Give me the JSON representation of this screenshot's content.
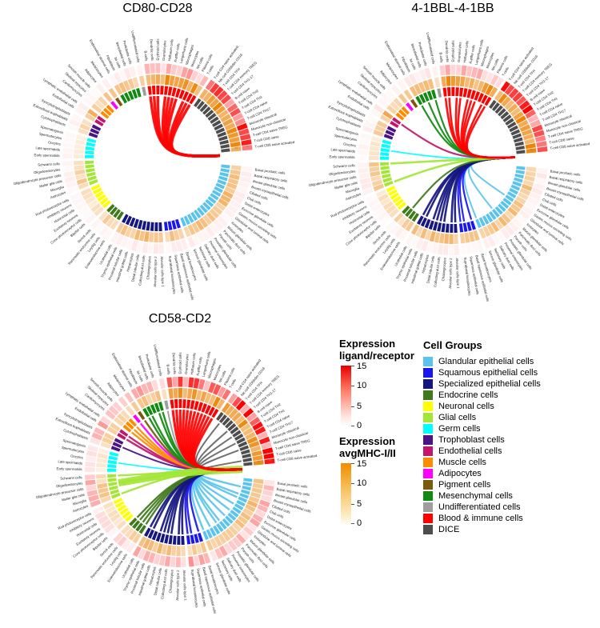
{
  "legend_ligand": {
    "title_line1": "Expression",
    "title_line2": "ligand/receptor",
    "ticks": [
      "15",
      "10",
      "5",
      "0"
    ]
  },
  "legend_mhc": {
    "title_line1": "Expression",
    "title_line2": "avgMHC-I/II",
    "ticks": [
      "15",
      "10",
      "5",
      "0"
    ]
  },
  "cell_groups": {
    "title": "Cell Groups"
  },
  "chart_data": {
    "type": "circos-chord",
    "expression_scale": {
      "min": 0,
      "max": 15,
      "ticks": [
        15,
        10,
        5,
        0
      ]
    },
    "gap_scale_label": "15",
    "groups": [
      {
        "name": "Glandular epithelial cells",
        "color": "#5BC4EC",
        "cells": [
          "Basal prostatic cells",
          "Basal respiratory cells",
          "Breast glandular cells",
          "Breast myoepithelial cells",
          "Ciliated cells",
          "Club cells",
          "Distal enterocytes",
          "Exocrine glandular cells",
          "Gastric mucus-secreting cells",
          "Glandular and luminal cells",
          "Ionocytes",
          "Mucus glandular cells",
          "Pancreatic duct cells",
          "Paneth cells",
          "Prostatic glandular cells",
          "Proximal enterocytes",
          "Salivary duct cells",
          "Secretory cells",
          "Serous glandular cells"
        ]
      },
      {
        "name": "Squamous epithelial cells",
        "color": "#1A16F0",
        "cells": [
          "Basal keratinocytes",
          "Basal squamous epithelial cells",
          "Squamous epithelial cells",
          "Suprabasal keratinocytes"
        ]
      },
      {
        "name": "Specialized epithelial cells",
        "color": "#16167F",
        "cells": [
          "Alveolar cells type 1",
          "Alveolar cells type 2",
          "Cholangiocytes",
          "Collecting duct cells",
          "Distal tubular cells",
          "Hepatocytes",
          "Intestinal goblet cells",
          "Proximal tubular cells",
          "Thymic epithelial cells",
          "Urothelial cells"
        ]
      },
      {
        "name": "Endocrine cells",
        "color": "#3F7A1B",
        "cells": [
          "Enteroendocrine cells",
          "Leydig cells",
          "Pancreatic endocrine cells",
          "Sertoli cells"
        ]
      },
      {
        "name": "Neuronal cells",
        "color": "#FFFF00",
        "cells": [
          "Bipolar cells",
          "Cone photoreceptor cells",
          "Excitatory neurons",
          "Horizontal cells",
          "Inhibitory neurons",
          "Rod photoreceptor cells"
        ]
      },
      {
        "name": "Glial cells",
        "color": "#A3E635",
        "cells": [
          "Astrocytes",
          "Microglia",
          "Muller glia cells",
          "Oligodendrocyte precursor cells",
          "Oligodendrocytes",
          "Schwann cells"
        ]
      },
      {
        "name": "Germ cells",
        "color": "#00FFFF",
        "cells": [
          "Early spermatids",
          "Late spermatids",
          "Oocytes",
          "Spermatocytes",
          "Spermatogonia"
        ]
      },
      {
        "name": "Trophoblast cells",
        "color": "#4A1486",
        "cells": [
          "Cytotrophoblasts",
          "Extravillous trophoblasts",
          "Syncytiotrophoblasts"
        ]
      },
      {
        "name": "Endothelial cells",
        "color": "#C2156B",
        "cells": [
          "Endothelial cells",
          "Lymphatic endothelial cells"
        ]
      },
      {
        "name": "Muscle cells",
        "color": "#FF8C00",
        "cells": [
          "Cardiomyocytes",
          "Skeletal myocytes",
          "Smooth muscle cells"
        ]
      },
      {
        "name": "Adipocytes",
        "color": "#FF00FF",
        "cells": [
          "Adipocytes"
        ]
      },
      {
        "name": "Pigment cells",
        "color": "#7A5A0B",
        "cells": [
          "Melanocytes"
        ]
      },
      {
        "name": "Mesenchymal cells",
        "color": "#118A11",
        "cells": [
          "Endometrial stromal cells",
          "Fibroblasts",
          "Ito cells",
          "Mesothelial cells",
          "Peritubular cells"
        ]
      },
      {
        "name": "Undifferentiated cells",
        "color": "#9E9E9E",
        "cells": [
          "Undifferentiated cells"
        ]
      },
      {
        "name": "Blood & immune cells",
        "color": "#FF0000",
        "cells": [
          "B-cells",
          "Dendritic cells",
          "Erythroid cells",
          "Granulocytes",
          "Hofbauer cells",
          "Kupffer cells",
          "Langerhans cells",
          "Macrophages",
          "Monocytes",
          "NK-cells",
          "Plasma cells",
          "T-cells"
        ]
      },
      {
        "name": "DICE",
        "color": "#4D4D4D",
        "cells": [
          "T-cell CD4 naive activated",
          "NK-cell CD56dim CD16",
          "T-cell CD4 TFH",
          "T-cell CD4 memory TREG",
          "T-cell CD4 TH1-17",
          "B-cell naive",
          "T-cell CD4 TH2",
          "T-cell CD4 TH1",
          "T-cell CD4 naive",
          "T-cell CD4 TH17",
          "Monocyte classical",
          "Monocyte non-classical",
          "T-cell CD4 naive TREG",
          "T-cell CD8 naive",
          "T-cell CD8 naive activated"
        ]
      }
    ],
    "mhc_heat": {
      "Glandular epithelial cells": 7,
      "Squamous epithelial cells": 6,
      "Specialized epithelial cells": 7,
      "Endocrine cells": 5,
      "Neuronal cells": 3.5,
      "Glial cells": 5.5,
      "Germ cells": 2.5,
      "Trophoblast cells": 5,
      "Endothelial cells": 8,
      "Muscle cells": 4.5,
      "Adipocytes": 6,
      "Pigment cells": 6,
      "Mesenchymal cells": 6.5,
      "Undifferentiated cells": 5.5,
      "Blood & immune cells": 11,
      "DICE": 12
    },
    "plots": [
      {
        "title": "CD80-CD28",
        "ligand_heat": {
          "Glandular epithelial cells": 0.8,
          "Squamous epithelial cells": 0.8,
          "Specialized epithelial cells": 0.9,
          "Endocrine cells": 0.6,
          "Neuronal cells": 0.4,
          "Glial cells": 0.7,
          "Germ cells": 0.4,
          "Trophoblast cells": 0.6,
          "Endothelial cells": 0.9,
          "Muscle cells": 0.5,
          "Adipocytes": 0.6,
          "Pigment cells": 0.6,
          "Mesenchymal cells": 0.9,
          "Undifferentiated cells": 0.8,
          "Blood & immune cells": 4,
          "DICE": 9.5
        },
        "chords": [
          {
            "group": "Blood & immune cells",
            "n": 10,
            "width": 3.5
          }
        ]
      },
      {
        "title": "4-1BBL-4-1BB",
        "ligand_heat": {
          "Glandular epithelial cells": 0.9,
          "Squamous epithelial cells": 0.9,
          "Specialized epithelial cells": 1,
          "Endocrine cells": 0.6,
          "Neuronal cells": 0.4,
          "Glial cells": 1,
          "Germ cells": 0.5,
          "Trophoblast cells": 0.7,
          "Endothelial cells": 1,
          "Muscle cells": 0.5,
          "Adipocytes": 0.7,
          "Pigment cells": 0.7,
          "Mesenchymal cells": 1,
          "Undifferentiated cells": 0.9,
          "Blood & immune cells": 3.5,
          "DICE": 10.5
        },
        "chords": [
          {
            "group": "Glandular epithelial cells",
            "n": 3,
            "width": 2,
            "from": 0.45
          },
          {
            "group": "Squamous epithelial cells",
            "n": 3,
            "width": 2.2
          },
          {
            "group": "Specialized epithelial cells",
            "n": 8,
            "width": 2.6
          },
          {
            "group": "Endocrine cells",
            "n": 1,
            "width": 2.2
          },
          {
            "group": "Germ cells",
            "n": 1,
            "width": 1.8
          },
          {
            "group": "Endothelial cells",
            "n": 1,
            "width": 2.2
          },
          {
            "group": "Mesenchymal cells",
            "n": 3,
            "width": 2.2
          },
          {
            "group": "Glial cells",
            "n": 2,
            "width": 2.6
          },
          {
            "group": "Blood & immune cells",
            "n": 9,
            "width": 2.6
          }
        ]
      },
      {
        "title": "CD58-CD2",
        "ligand_heat": {
          "Glandular epithelial cells": 3.5,
          "Squamous epithelial cells": 4.5,
          "Specialized epithelial cells": 3.5,
          "Endocrine cells": 2.5,
          "Neuronal cells": 1.5,
          "Glial cells": 3.5,
          "Germ cells": 1.5,
          "Trophoblast cells": 3,
          "Endothelial cells": 4.5,
          "Muscle cells": 2.5,
          "Adipocytes": 3,
          "Pigment cells": 3,
          "Mesenchymal cells": 4.5,
          "Undifferentiated cells": 3.5,
          "Blood & immune cells": 8.5,
          "DICE": 11
        },
        "chords": [
          {
            "group": "Glandular epithelial cells",
            "n": 10,
            "width": 2.4,
            "from": 0.1
          },
          {
            "group": "Squamous epithelial cells",
            "n": 3,
            "width": 2.4
          },
          {
            "group": "Specialized epithelial cells",
            "n": 8,
            "width": 2.6
          },
          {
            "group": "Endocrine cells",
            "n": 4,
            "width": 2.4
          },
          {
            "group": "Germ cells",
            "n": 1,
            "width": 1.6
          },
          {
            "group": "Trophoblast cells",
            "n": 1,
            "width": 2
          },
          {
            "group": "Endothelial cells",
            "n": 2,
            "width": 2.4
          },
          {
            "group": "Muscle cells",
            "n": 3,
            "width": 2.4
          },
          {
            "group": "Adipocytes",
            "n": 1,
            "width": 2.4
          },
          {
            "group": "Pigment cells",
            "n": 1,
            "width": 2.4
          },
          {
            "group": "Mesenchymal cells",
            "n": 4,
            "width": 2.4
          },
          {
            "group": "Undifferentiated cells",
            "n": 1,
            "width": 2
          },
          {
            "group": "DICE",
            "n": 6,
            "width": 2,
            "color": "#666666",
            "from": 0.1,
            "to": 0.9
          },
          {
            "group": "Glial cells",
            "n": 1,
            "width": 9
          },
          {
            "group": "Glial cells",
            "n": 3,
            "width": 2.4
          },
          {
            "group": "Blood & immune cells",
            "n": 12,
            "width": 3.2
          }
        ]
      }
    ]
  }
}
